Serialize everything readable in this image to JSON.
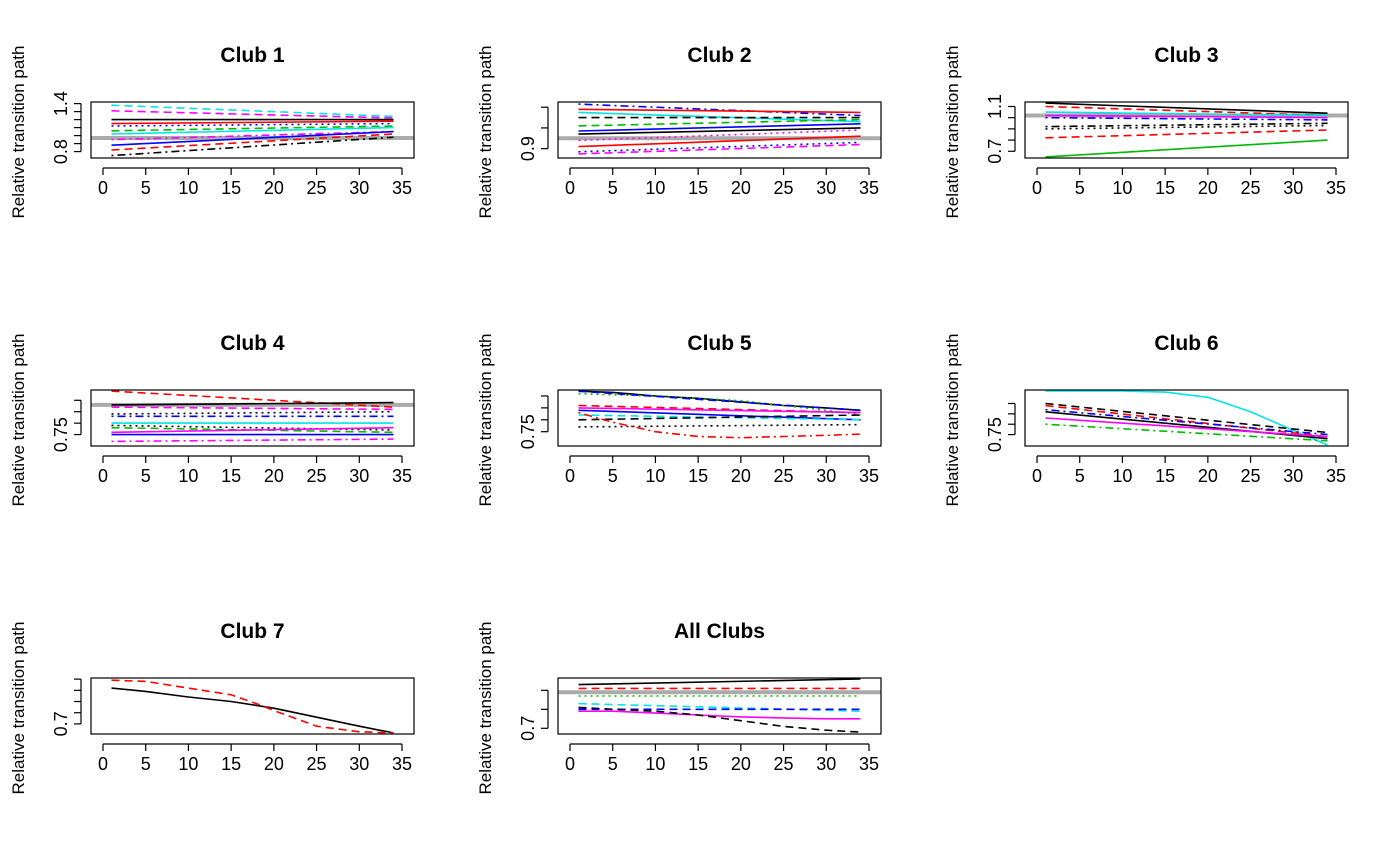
{
  "figure": {
    "ylabel": "Relative transition path",
    "xticks": [
      0,
      5,
      10,
      15,
      20,
      25,
      30,
      35
    ],
    "xlim": [
      0,
      35
    ],
    "reference_color": "#aaaaaa",
    "line_colors": [
      "#000000",
      "#ff0000",
      "#00bb00",
      "#0000ff",
      "#00e5e5",
      "#ff00ff"
    ]
  },
  "chart_data": [
    {
      "type": "line",
      "title": "Club 1",
      "ylabel": "Relative transition path",
      "ylim": [
        0.72,
        1.42
      ],
      "yticks": [
        0.8,
        1.4
      ],
      "yticks_minor": [
        0.9,
        1.0,
        1.1,
        1.2,
        1.3
      ],
      "reference": 0.97,
      "series": [
        {
          "x": [
            1,
            34
          ],
          "y": [
            1.38,
            1.24
          ],
          "color": "#00e5e5",
          "dash": "dashed"
        },
        {
          "x": [
            1,
            34
          ],
          "y": [
            1.31,
            1.22
          ],
          "color": "#ff00ff",
          "dash": "dashed"
        },
        {
          "x": [
            1,
            34
          ],
          "y": [
            1.2,
            1.2
          ],
          "color": "#000000",
          "dash": "solid"
        },
        {
          "x": [
            1,
            34
          ],
          "y": [
            1.15,
            1.18
          ],
          "color": "#ff0000",
          "dash": "solid"
        },
        {
          "x": [
            1,
            34
          ],
          "y": [
            1.12,
            1.15
          ],
          "color": "#0000ff",
          "dash": "dotted"
        },
        {
          "x": [
            1,
            34
          ],
          "y": [
            1.06,
            1.12
          ],
          "color": "#00bb00",
          "dash": "dashed"
        },
        {
          "x": [
            1,
            34
          ],
          "y": [
            1.02,
            1.1
          ],
          "color": "#00e5e5",
          "dash": "solid"
        },
        {
          "x": [
            1,
            34
          ],
          "y": [
            0.95,
            1.05
          ],
          "color": "#ff00ff",
          "dash": "dotdash"
        },
        {
          "x": [
            1,
            34
          ],
          "y": [
            0.88,
            1.05
          ],
          "color": "#0000ff",
          "dash": "solid"
        },
        {
          "x": [
            1,
            34
          ],
          "y": [
            0.82,
            1.02
          ],
          "color": "#ff0000",
          "dash": "dashed"
        },
        {
          "x": [
            1,
            34
          ],
          "y": [
            0.75,
            0.98
          ],
          "color": "#000000",
          "dash": "dotdash"
        }
      ]
    },
    {
      "type": "line",
      "title": "Club 2",
      "ylabel": "Relative transition path",
      "ylim": [
        0.855,
        1.125
      ],
      "yticks": [
        0.9
      ],
      "yticks_minor": [
        1.0,
        1.1
      ],
      "reference": 0.95,
      "series": [
        {
          "x": [
            1,
            34
          ],
          "y": [
            1.115,
            1.06
          ],
          "color": "#0000ff",
          "dash": "dotdash"
        },
        {
          "x": [
            1,
            34
          ],
          "y": [
            1.09,
            1.075
          ],
          "color": "#ff0000",
          "dash": "solid"
        },
        {
          "x": [
            1,
            34
          ],
          "y": [
            1.075,
            1.03
          ],
          "color": "#00e5e5",
          "dash": "solid"
        },
        {
          "x": [
            1,
            34
          ],
          "y": [
            1.05,
            1.05
          ],
          "color": "#000000",
          "dash": "dashed"
        },
        {
          "x": [
            1,
            34
          ],
          "y": [
            1.01,
            1.04
          ],
          "color": "#00bb00",
          "dash": "dashed"
        },
        {
          "x": [
            1,
            34
          ],
          "y": [
            0.985,
            1.02
          ],
          "color": "#0000ff",
          "dash": "solid"
        },
        {
          "x": [
            1,
            34
          ],
          "y": [
            0.97,
            1.0
          ],
          "color": "#000000",
          "dash": "solid"
        },
        {
          "x": [
            1,
            34
          ],
          "y": [
            0.94,
            0.99
          ],
          "color": "#ff00ff",
          "dash": "dotted"
        },
        {
          "x": [
            1,
            34
          ],
          "y": [
            0.91,
            0.96
          ],
          "color": "#ff0000",
          "dash": "solid"
        },
        {
          "x": [
            1,
            34
          ],
          "y": [
            0.885,
            0.93
          ],
          "color": "#0000ff",
          "dash": "dotted"
        },
        {
          "x": [
            1,
            34
          ],
          "y": [
            0.875,
            0.92
          ],
          "color": "#ff00ff",
          "dash": "dashed"
        }
      ]
    },
    {
      "type": "line",
      "title": "Club 3",
      "ylabel": "Relative transition path",
      "ylim": [
        0.64,
        1.14
      ],
      "yticks": [
        0.7,
        1.1
      ],
      "yticks_minor": [
        0.8,
        0.9,
        1.0
      ],
      "reference": 1.02,
      "series": [
        {
          "x": [
            1,
            34
          ],
          "y": [
            1.13,
            1.04
          ],
          "color": "#000000",
          "dash": "solid"
        },
        {
          "x": [
            1,
            34
          ],
          "y": [
            1.1,
            1.02
          ],
          "color": "#ff0000",
          "dash": "dashed"
        },
        {
          "x": [
            1,
            34
          ],
          "y": [
            1.05,
            1.02
          ],
          "color": "#00e5e5",
          "dash": "solid"
        },
        {
          "x": [
            1,
            34
          ],
          "y": [
            1.02,
            1.0
          ],
          "color": "#ff00ff",
          "dash": "solid"
        },
        {
          "x": [
            1,
            34
          ],
          "y": [
            1.0,
            0.98
          ],
          "color": "#0000ff",
          "dash": "dotdash"
        },
        {
          "x": [
            1,
            34
          ],
          "y": [
            0.92,
            0.95
          ],
          "color": "#000000",
          "dash": "dotdash"
        },
        {
          "x": [
            1,
            34
          ],
          "y": [
            0.9,
            0.93
          ],
          "color": "#000000",
          "dash": "dotted"
        },
        {
          "x": [
            1,
            34
          ],
          "y": [
            0.82,
            0.89
          ],
          "color": "#ff0000",
          "dash": "dashed"
        },
        {
          "x": [
            1,
            34
          ],
          "y": [
            0.65,
            0.8
          ],
          "color": "#00bb00",
          "dash": "solid"
        }
      ]
    },
    {
      "type": "line",
      "title": "Club 4",
      "ylabel": "Relative transition path",
      "ylim": [
        0.7,
        0.945
      ],
      "yticks": [
        0.75
      ],
      "yticks_minor": [
        0.8,
        0.85,
        0.9
      ],
      "reference": 0.88,
      "series": [
        {
          "x": [
            1,
            34
          ],
          "y": [
            0.94,
            0.87
          ],
          "color": "#ff0000",
          "dash": "dashed"
        },
        {
          "x": [
            1,
            34
          ],
          "y": [
            0.88,
            0.89
          ],
          "color": "#000000",
          "dash": "solid"
        },
        {
          "x": [
            1,
            34
          ],
          "y": [
            0.87,
            0.86
          ],
          "color": "#ff00ff",
          "dash": "dashed"
        },
        {
          "x": [
            1,
            34
          ],
          "y": [
            0.84,
            0.85
          ],
          "color": "#000000",
          "dash": "dotted"
        },
        {
          "x": [
            1,
            34
          ],
          "y": [
            0.83,
            0.83
          ],
          "color": "#0000ff",
          "dash": "dotdash"
        },
        {
          "x": [
            1,
            34
          ],
          "y": [
            0.8,
            0.8
          ],
          "color": "#00e5e5",
          "dash": "solid"
        },
        {
          "x": [
            1,
            34
          ],
          "y": [
            0.79,
            0.77
          ],
          "color": "#000000",
          "dash": "dotted"
        },
        {
          "x": [
            1,
            34
          ],
          "y": [
            0.78,
            0.76
          ],
          "color": "#00bb00",
          "dash": "dashed"
        },
        {
          "x": [
            1,
            34
          ],
          "y": [
            0.76,
            0.78
          ],
          "color": "#ff00ff",
          "dash": "solid"
        },
        {
          "x": [
            1,
            34
          ],
          "y": [
            0.75,
            0.75
          ],
          "color": "#0000ff",
          "dash": "solid"
        },
        {
          "x": [
            1,
            34
          ],
          "y": [
            0.72,
            0.73
          ],
          "color": "#ff00ff",
          "dash": "dotdash"
        }
      ]
    },
    {
      "type": "line",
      "title": "Club 5",
      "ylabel": "Relative transition path",
      "ylim": [
        0.69,
        0.925
      ],
      "yticks": [
        0.75
      ],
      "yticks_minor": [
        0.8,
        0.85,
        0.9
      ],
      "reference": null,
      "series": [
        {
          "x": [
            1,
            5,
            10,
            15,
            20,
            25,
            30,
            34
          ],
          "y": [
            0.92,
            0.915,
            0.9,
            0.89,
            0.875,
            0.86,
            0.85,
            0.84
          ],
          "color": "#000000",
          "dash": "solid"
        },
        {
          "x": [
            1,
            5,
            10,
            15,
            20,
            25,
            30,
            34
          ],
          "y": [
            0.91,
            0.905,
            0.9,
            0.89,
            0.88,
            0.86,
            0.84,
            0.82
          ],
          "color": "#00bb00",
          "dash": "dotted"
        },
        {
          "x": [
            1,
            34
          ],
          "y": [
            0.92,
            0.84
          ],
          "color": "#0000ff",
          "dash": "dashed"
        },
        {
          "x": [
            1,
            34
          ],
          "y": [
            0.86,
            0.83
          ],
          "color": "#ff0000",
          "dash": "dashed"
        },
        {
          "x": [
            1,
            34
          ],
          "y": [
            0.85,
            0.83
          ],
          "color": "#ff00ff",
          "dash": "solid"
        },
        {
          "x": [
            1,
            34
          ],
          "y": [
            0.84,
            0.8
          ],
          "color": "#0000ff",
          "dash": "solid"
        },
        {
          "x": [
            1,
            34
          ],
          "y": [
            0.82,
            0.8
          ],
          "color": "#00e5e5",
          "dash": "dashed"
        },
        {
          "x": [
            1,
            34
          ],
          "y": [
            0.8,
            0.82
          ],
          "color": "#000000",
          "dash": "dashed"
        },
        {
          "x": [
            1,
            34
          ],
          "y": [
            0.77,
            0.78
          ],
          "color": "#000000",
          "dash": "dotted"
        },
        {
          "x": [
            1,
            5,
            10,
            15,
            20,
            25,
            30,
            34
          ],
          "y": [
            0.83,
            0.79,
            0.75,
            0.73,
            0.725,
            0.73,
            0.735,
            0.74
          ],
          "color": "#ff0000",
          "dash": "dotdash"
        }
      ]
    },
    {
      "type": "line",
      "title": "Club 6",
      "ylabel": "Relative transition path",
      "ylim": [
        0.695,
        0.965
      ],
      "yticks": [
        0.75
      ],
      "yticks_minor": [
        0.8,
        0.85,
        0.9
      ],
      "reference": null,
      "series": [
        {
          "x": [
            1,
            5,
            10,
            15,
            20,
            25,
            30,
            34
          ],
          "y": [
            0.96,
            0.96,
            0.96,
            0.955,
            0.93,
            0.86,
            0.77,
            0.7
          ],
          "color": "#00e5e5",
          "dash": "solid"
        },
        {
          "x": [
            1,
            34
          ],
          "y": [
            0.9,
            0.76
          ],
          "color": "#000000",
          "dash": "dashed"
        },
        {
          "x": [
            1,
            34
          ],
          "y": [
            0.89,
            0.74
          ],
          "color": "#ff0000",
          "dash": "dashed"
        },
        {
          "x": [
            1,
            34
          ],
          "y": [
            0.87,
            0.75
          ],
          "color": "#0000ff",
          "dash": "dotdash"
        },
        {
          "x": [
            1,
            34
          ],
          "y": [
            0.86,
            0.73
          ],
          "color": "#000000",
          "dash": "solid"
        },
        {
          "x": [
            1,
            34
          ],
          "y": [
            0.83,
            0.74
          ],
          "color": "#ff00ff",
          "dash": "solid"
        },
        {
          "x": [
            1,
            34
          ],
          "y": [
            0.8,
            0.72
          ],
          "color": "#00bb00",
          "dash": "dotdash"
        }
      ]
    },
    {
      "type": "line",
      "title": "Club 7",
      "ylabel": "Relative transition path",
      "ylim": [
        0.655,
        0.905
      ],
      "yticks": [
        0.7
      ],
      "yticks_minor": [
        0.75,
        0.8,
        0.85,
        0.9
      ],
      "reference": null,
      "series": [
        {
          "x": [
            1,
            5,
            10,
            15,
            20,
            25,
            30,
            34
          ],
          "y": [
            0.86,
            0.845,
            0.82,
            0.8,
            0.77,
            0.73,
            0.69,
            0.66
          ],
          "color": "#000000",
          "dash": "solid"
        },
        {
          "x": [
            1,
            5,
            10,
            15,
            18,
            20,
            25,
            30,
            34
          ],
          "y": [
            0.895,
            0.89,
            0.86,
            0.83,
            0.79,
            0.76,
            0.69,
            0.665,
            0.66
          ],
          "color": "#ff0000",
          "dash": "dashed"
        }
      ]
    },
    {
      "type": "line",
      "title": "All Clubs",
      "ylabel": "Relative transition path",
      "ylim": [
        0.67,
        0.965
      ],
      "yticks": [
        0.7
      ],
      "yticks_minor": [
        0.8,
        0.9
      ],
      "reference": 0.89,
      "series": [
        {
          "x": [
            1,
            34
          ],
          "y": [
            0.93,
            0.96
          ],
          "color": "#000000",
          "dash": "solid"
        },
        {
          "x": [
            1,
            34
          ],
          "y": [
            0.91,
            0.91
          ],
          "color": "#ff0000",
          "dash": "dashed"
        },
        {
          "x": [
            1,
            34
          ],
          "y": [
            0.87,
            0.87
          ],
          "color": "#00bb00",
          "dash": "dotted"
        },
        {
          "x": [
            1,
            34
          ],
          "y": [
            0.83,
            0.79
          ],
          "color": "#00e5e5",
          "dash": "dashed"
        },
        {
          "x": [
            1,
            34
          ],
          "y": [
            0.8,
            0.8
          ],
          "color": "#0000ff",
          "dash": "dashed"
        },
        {
          "x": [
            1,
            5,
            10,
            15,
            20,
            25,
            30,
            34
          ],
          "y": [
            0.79,
            0.79,
            0.78,
            0.77,
            0.76,
            0.755,
            0.75,
            0.75
          ],
          "color": "#ff00ff",
          "dash": "solid"
        },
        {
          "x": [
            1,
            5,
            10,
            15,
            20,
            25,
            30,
            34
          ],
          "y": [
            0.81,
            0.8,
            0.79,
            0.77,
            0.74,
            0.71,
            0.69,
            0.68
          ],
          "color": "#000000",
          "dash": "dashed"
        }
      ]
    }
  ]
}
